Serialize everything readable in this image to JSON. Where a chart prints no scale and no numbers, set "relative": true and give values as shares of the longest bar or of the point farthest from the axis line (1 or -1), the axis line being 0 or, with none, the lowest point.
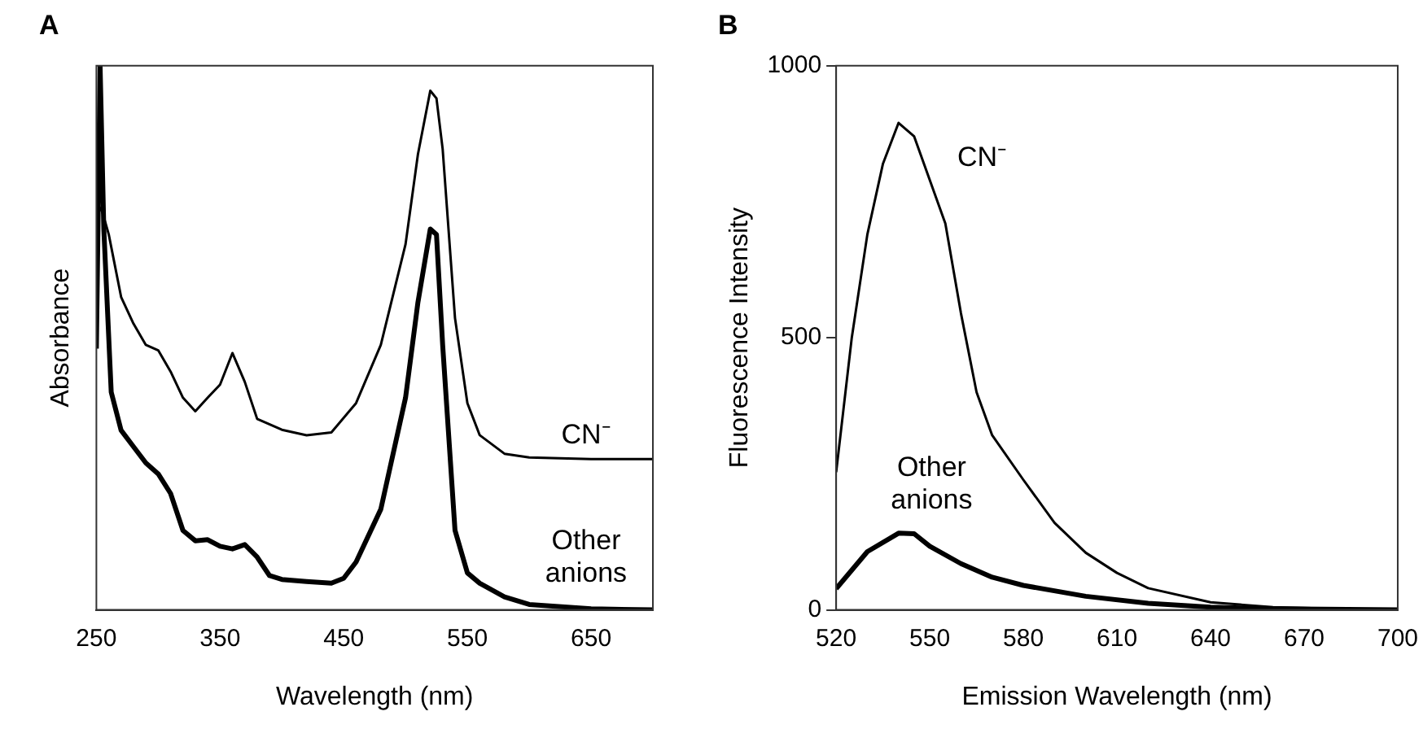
{
  "chart_data": [
    {
      "type": "line",
      "title": "A",
      "xlabel": "Wavelength (nm)",
      "ylabel": "Absorbance",
      "relative": true,
      "xlim": [
        250,
        700
      ],
      "xticks": [
        250,
        350,
        450,
        550,
        650
      ],
      "series": [
        {
          "name": "CN⁻",
          "color": "#000000",
          "x": [
            250,
            255,
            260,
            270,
            280,
            290,
            300,
            310,
            320,
            330,
            340,
            350,
            360,
            370,
            380,
            400,
            420,
            440,
            460,
            480,
            500,
            510,
            520,
            525,
            530,
            540,
            550,
            560,
            580,
            600,
            650,
            700
          ],
          "values": [
            0.75,
            0.73,
            0.69,
            0.575,
            0.526,
            0.487,
            0.477,
            0.438,
            0.39,
            0.365,
            0.39,
            0.414,
            0.472,
            0.419,
            0.351,
            0.331,
            0.321,
            0.326,
            0.38,
            0.487,
            0.672,
            0.837,
            0.954,
            0.94,
            0.847,
            0.536,
            0.38,
            0.321,
            0.287,
            0.28,
            0.277,
            0.277
          ]
        },
        {
          "name": "Other anions",
          "color": "#000000",
          "x": [
            250,
            253,
            256,
            262,
            270,
            280,
            290,
            300,
            310,
            320,
            330,
            340,
            350,
            360,
            370,
            380,
            390,
            400,
            420,
            440,
            450,
            460,
            480,
            500,
            510,
            520,
            525,
            530,
            540,
            550,
            560,
            580,
            600,
            650,
            700
          ],
          "values": [
            0.48,
            1.0,
            0.7,
            0.4,
            0.33,
            0.3,
            0.27,
            0.25,
            0.214,
            0.146,
            0.127,
            0.129,
            0.117,
            0.112,
            0.12,
            0.097,
            0.063,
            0.056,
            0.052,
            0.049,
            0.058,
            0.088,
            0.185,
            0.39,
            0.565,
            0.7,
            0.69,
            0.487,
            0.146,
            0.068,
            0.049,
            0.024,
            0.01,
            0.002,
            0
          ]
        }
      ]
    },
    {
      "type": "line",
      "title": "B",
      "xlabel": "Emission Wavelength (nm)",
      "ylabel": "Fluorescence Intensity",
      "xlim": [
        520,
        700
      ],
      "xticks": [
        520,
        550,
        580,
        610,
        640,
        670,
        700
      ],
      "ylim": [
        0,
        1000
      ],
      "yticks": [
        0,
        500,
        1000
      ],
      "series": [
        {
          "name": "CN⁻",
          "color": "#000000",
          "x": [
            520,
            525,
            530,
            535,
            540,
            545,
            550,
            555,
            560,
            565,
            570,
            580,
            590,
            600,
            610,
            620,
            640,
            660,
            680,
            700
          ],
          "values": [
            253,
            500,
            690,
            820,
            895,
            870,
            790,
            710,
            545,
            400,
            321,
            239,
            160,
            105,
            68,
            40,
            14,
            5,
            2,
            0
          ]
        },
        {
          "name": "Other anions",
          "color": "#000000",
          "x": [
            520,
            530,
            540,
            545,
            550,
            560,
            570,
            580,
            600,
            620,
            640,
            660,
            700
          ],
          "values": [
            39,
            107,
            141,
            140,
            117,
            85,
            60,
            45,
            25,
            12,
            5,
            2,
            0
          ]
        }
      ]
    }
  ]
}
